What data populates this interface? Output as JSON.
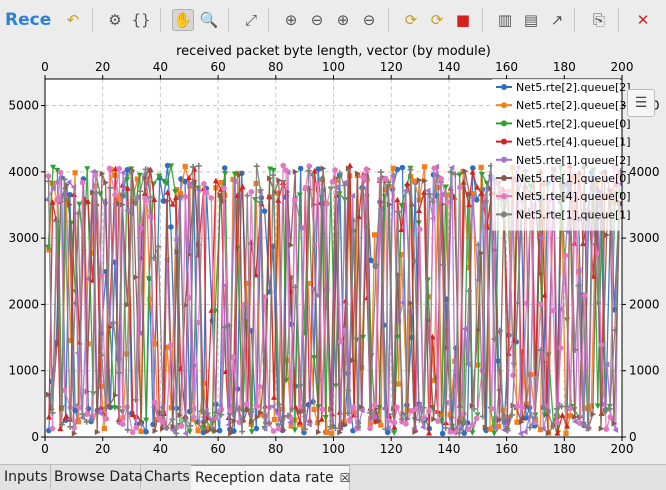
{
  "header": {
    "title": "Recep"
  },
  "toolbar": {
    "buttons": [
      {
        "name": "undo-icon",
        "glyph": "↶"
      },
      {
        "name": "gear-icon",
        "glyph": "⚙"
      },
      {
        "name": "braces-icon",
        "glyph": "{}"
      },
      {
        "name": "hand-icon",
        "glyph": "✋"
      },
      {
        "name": "zoom-icon",
        "glyph": "🔍"
      },
      {
        "name": "zoom-fit-icon",
        "glyph": "⤢"
      },
      {
        "name": "zoom-in-icon",
        "glyph": "⊕"
      },
      {
        "name": "zoom-out-icon",
        "glyph": "⊖"
      },
      {
        "name": "zoom-in-x-icon",
        "glyph": "⊕"
      },
      {
        "name": "zoom-out-x-icon",
        "glyph": "⊖"
      },
      {
        "name": "refresh-icon",
        "glyph": "⟳"
      },
      {
        "name": "refresh-auto-icon",
        "glyph": "⟳"
      },
      {
        "name": "stop-icon",
        "glyph": "■"
      },
      {
        "name": "bar-chart-icon",
        "glyph": "▥"
      },
      {
        "name": "histogram-icon",
        "glyph": "▤"
      },
      {
        "name": "line-chart-icon",
        "glyph": "↗"
      },
      {
        "name": "copy-icon",
        "glyph": "⎘"
      },
      {
        "name": "close-icon",
        "glyph": "✕"
      }
    ]
  },
  "tabs": [
    {
      "label": "Inputs"
    },
    {
      "label": "Browse Data"
    },
    {
      "label": "Charts"
    },
    {
      "label": "Reception data rate",
      "active": true
    }
  ],
  "chart_data": {
    "type": "line",
    "title": "received packet byte length, vector (by module)",
    "xlabel": "",
    "ylabel": "",
    "xlim": [
      0,
      200
    ],
    "ylim": [
      0,
      5400
    ],
    "x_ticks": [
      0,
      20,
      40,
      60,
      80,
      100,
      120,
      140,
      160,
      180,
      200
    ],
    "y_ticks": [
      0,
      1000,
      2000,
      3000,
      4000,
      5000
    ],
    "grid": true,
    "legend_position": "top-right",
    "series": [
      {
        "name": "Net5.rte[2].queue[2]",
        "color": "#2f6fbf",
        "marker": "circle",
        "seed": 11
      },
      {
        "name": "Net5.rte[2].queue[3]",
        "color": "#f07f1e",
        "marker": "square",
        "seed": 23
      },
      {
        "name": "Net5.rte[2].queue[0]",
        "color": "#2ea02e",
        "marker": "triangle-down",
        "seed": 37
      },
      {
        "name": "Net5.rte[4].queue[1]",
        "color": "#d62020",
        "marker": "triangle-up",
        "seed": 41
      },
      {
        "name": "Net5.rte[1].queue[2]",
        "color": "#a572cf",
        "marker": "triangle-left",
        "seed": 53
      },
      {
        "name": "Net5.rte[1].queue[0]",
        "color": "#8c564b",
        "marker": "triangle-right",
        "seed": 67
      },
      {
        "name": "Net5.rte[4].queue[0]",
        "color": "#e377c2",
        "marker": "circle",
        "seed": 79
      },
      {
        "name": "Net5.rte[1].queue[1]",
        "color": "#7f7f7f",
        "marker": "plus",
        "seed": 97
      }
    ],
    "value_range": [
      50,
      4100
    ],
    "points_per_series": 130
  }
}
